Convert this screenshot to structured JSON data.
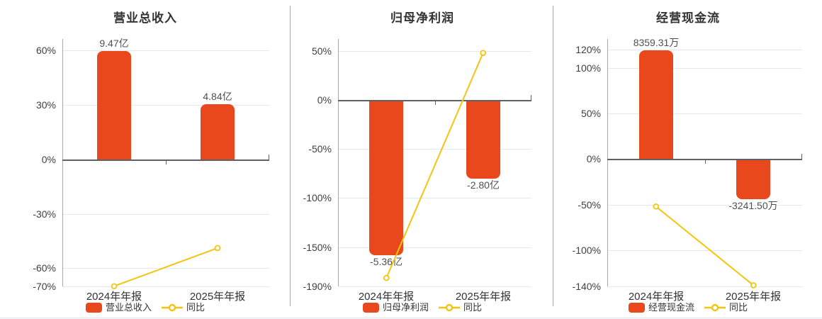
{
  "page": {
    "background": "#ffffff"
  },
  "colors": {
    "bar": "#e8481c",
    "line": "#f4c411",
    "marker_fill": "#ffffff",
    "grid": "#e3e9f3",
    "zero_axis": "#5d6269",
    "axis_line": "#a5a8ad",
    "panel_divider": "#a5a8ad",
    "bottom_border": "#dde2ec",
    "title_text": "#333333",
    "tick_text": "#3f3f3f",
    "category_text": "#333333",
    "value_label_text": "#4f4f4f",
    "legend_text": "#333333"
  },
  "chart_data": [
    {
      "type": "bar",
      "title": "营业总收入",
      "categories": [
        "2024年年报",
        "2025年年报"
      ],
      "bar_series": {
        "name": "营业总收入",
        "value_labels": [
          "9.47亿",
          "4.84亿"
        ],
        "bar_pct": [
          59.5,
          30.4
        ],
        "label_side": [
          "above",
          "above"
        ]
      },
      "line_series": {
        "name": "同比",
        "pct": [
          -69.9,
          -48.9
        ]
      },
      "y_axis": {
        "max": 66.2,
        "min": -70,
        "ticks": [
          60,
          30,
          0,
          -30,
          -60,
          -70
        ],
        "tick_labels": [
          "60%",
          "30%",
          "0%",
          "-30%",
          "-60%",
          "-70%"
        ]
      },
      "legend": [
        "营业总收入",
        "同比"
      ]
    },
    {
      "type": "bar",
      "title": "归母净利润",
      "categories": [
        "2024年年报",
        "2025年年报"
      ],
      "bar_series": {
        "name": "归母净利润",
        "value_labels": [
          "-5.36亿",
          "-2.80亿"
        ],
        "bar_pct": [
          -158.5,
          -80
        ],
        "label_side": [
          "below",
          "below"
        ]
      },
      "line_series": {
        "name": "同比",
        "pct": [
          -181.4,
          47.8
        ]
      },
      "y_axis": {
        "max": 62,
        "min": -190,
        "ticks": [
          50,
          0,
          -50,
          -100,
          -150,
          -190
        ],
        "tick_labels": [
          "50%",
          "0%",
          "-50%",
          "-100%",
          "-150%",
          "-190%"
        ]
      },
      "legend": [
        "归母净利润",
        "同比"
      ]
    },
    {
      "type": "bar",
      "title": "经营现金流",
      "categories": [
        "2024年年报",
        "2025年年报"
      ],
      "bar_series": {
        "name": "经营现金流",
        "value_labels": [
          "8359.31万",
          "-3241.50万"
        ],
        "bar_pct": [
          119.5,
          -44
        ],
        "label_side": [
          "above",
          "below"
        ]
      },
      "line_series": {
        "name": "同比",
        "pct": [
          -52.2,
          -138.8
        ]
      },
      "y_axis": {
        "max": 132,
        "min": -140,
        "ticks": [
          120,
          100,
          50,
          0,
          -50,
          -100,
          -140
        ],
        "tick_labels": [
          "120%",
          "100%",
          "50%",
          "0%",
          "-50%",
          "-100%",
          "-140%"
        ]
      },
      "legend": [
        "经营现金流",
        "同比"
      ]
    }
  ]
}
